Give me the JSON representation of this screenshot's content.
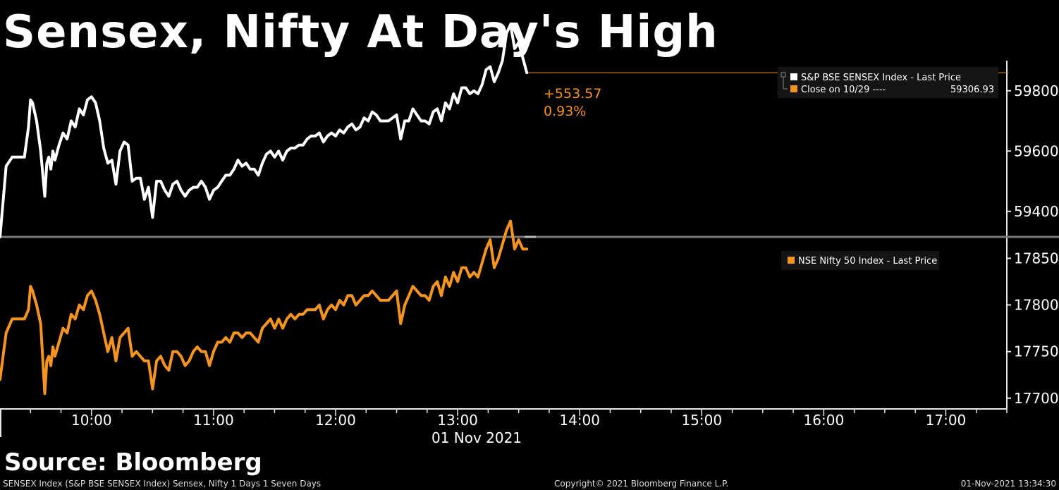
{
  "title": "Sensex, Nifty At Day's High",
  "source": "Source: Bloomberg",
  "footer": {
    "left": "SENSEX Index (S&P BSE SENSEX Index) Sensex, Nifty 1 Days 1 Seven Days",
    "center": "Copyright© 2021 Bloomberg Finance L.P.",
    "right": "01-Nov-2021 13:34:30"
  },
  "colors": {
    "sensex": "#ffffff",
    "nifty": "#f5941e",
    "background": "#000000",
    "panel": "#141414"
  },
  "chart_data": [
    {
      "type": "line",
      "panel": "top",
      "series": [
        {
          "name": "S&P BSE SENSEX Index - Last Price",
          "x": [
            "09:15",
            "09:18",
            "09:21",
            "09:24",
            "09:27",
            "09:29",
            "09:30",
            "09:31",
            "09:33",
            "09:35",
            "09:37",
            "09:38",
            "09:39",
            "09:40",
            "09:41",
            "09:42",
            "09:44",
            "09:46",
            "09:48",
            "09:50",
            "09:52",
            "09:54",
            "09:56",
            "09:58",
            "10:00",
            "10:02",
            "10:04",
            "10:06",
            "10:08",
            "10:10",
            "10:12",
            "10:14",
            "10:16",
            "10:18",
            "10:20",
            "10:22",
            "10:24",
            "10:26",
            "10:28",
            "10:30",
            "10:32",
            "10:34",
            "10:36",
            "10:38",
            "10:40",
            "10:42",
            "10:44",
            "10:46",
            "10:48",
            "10:50",
            "10:52",
            "10:54",
            "10:56",
            "10:58",
            "11:00",
            "11:02",
            "11:04",
            "11:06",
            "11:08",
            "11:10",
            "11:12",
            "11:14",
            "11:16",
            "11:18",
            "11:20",
            "11:22",
            "11:24",
            "11:26",
            "11:28",
            "11:30",
            "11:32",
            "11:34",
            "11:36",
            "11:38",
            "11:40",
            "11:42",
            "11:44",
            "11:46",
            "11:48",
            "11:50",
            "11:52",
            "11:54",
            "11:56",
            "11:58",
            "12:00",
            "12:02",
            "12:04",
            "12:06",
            "12:08",
            "12:10",
            "12:12",
            "12:14",
            "12:16",
            "12:18",
            "12:20",
            "12:22",
            "12:24",
            "12:26",
            "12:28",
            "12:30",
            "12:32",
            "12:34",
            "12:36",
            "12:38",
            "12:40",
            "12:42",
            "12:44",
            "12:46",
            "12:48",
            "12:50",
            "12:52",
            "12:54",
            "12:56",
            "12:58",
            "13:00",
            "13:02",
            "13:04",
            "13:06",
            "13:08",
            "13:10",
            "13:12",
            "13:14",
            "13:16",
            "13:18",
            "13:20",
            "13:22",
            "13:24",
            "13:26",
            "13:28",
            "13:30",
            "13:32",
            "13:34"
          ],
          "values": [
            59315,
            59550,
            59580,
            59580,
            59580,
            59680,
            59770,
            59760,
            59700,
            59600,
            59450,
            59560,
            59580,
            59540,
            59600,
            59570,
            59620,
            59660,
            59640,
            59700,
            59680,
            59740,
            59720,
            59770,
            59780,
            59760,
            59700,
            59610,
            59560,
            59570,
            59490,
            59600,
            59630,
            59620,
            59500,
            59510,
            59510,
            59440,
            59480,
            59380,
            59500,
            59500,
            59470,
            59450,
            59490,
            59500,
            59470,
            59450,
            59470,
            59480,
            59480,
            59500,
            59480,
            59440,
            59470,
            59480,
            59500,
            59520,
            59520,
            59540,
            59570,
            59550,
            59560,
            59540,
            59540,
            59520,
            59560,
            59590,
            59600,
            59580,
            59600,
            59570,
            59600,
            59610,
            59610,
            59620,
            59620,
            59640,
            59650,
            59650,
            59660,
            59630,
            59650,
            59660,
            59650,
            59670,
            59660,
            59680,
            59690,
            59670,
            59680,
            59710,
            59700,
            59730,
            59720,
            59700,
            59700,
            59700,
            59710,
            59720,
            59640,
            59700,
            59700,
            59740,
            59720,
            59700,
            59700,
            59690,
            59730,
            59740,
            59700,
            59760,
            59740,
            59790,
            59760,
            59810,
            59810,
            59790,
            59800,
            59790,
            59820,
            59870,
            59880,
            59830,
            59860,
            59900,
            59990,
            60020,
            59940,
            59960,
            59910,
            59860
          ]
        },
        {
          "name": "Close on 10/29",
          "value": 59306.93
        }
      ],
      "annotation": {
        "change": "+553.57",
        "percent": "0.93%"
      },
      "yticks": [
        59400,
        59600,
        59800
      ],
      "ylim": [
        59320,
        59900
      ]
    },
    {
      "type": "line",
      "panel": "bottom",
      "series": [
        {
          "name": "NSE Nifty 50 Index - Last Price",
          "x": [
            "09:15",
            "09:18",
            "09:21",
            "09:24",
            "09:27",
            "09:29",
            "09:30",
            "09:31",
            "09:33",
            "09:35",
            "09:37",
            "09:38",
            "09:39",
            "09:40",
            "09:41",
            "09:42",
            "09:44",
            "09:46",
            "09:48",
            "09:50",
            "09:52",
            "09:54",
            "09:56",
            "09:58",
            "10:00",
            "10:02",
            "10:04",
            "10:06",
            "10:08",
            "10:10",
            "10:12",
            "10:14",
            "10:16",
            "10:18",
            "10:20",
            "10:22",
            "10:24",
            "10:26",
            "10:28",
            "10:30",
            "10:32",
            "10:34",
            "10:36",
            "10:38",
            "10:40",
            "10:42",
            "10:44",
            "10:46",
            "10:48",
            "10:50",
            "10:52",
            "10:54",
            "10:56",
            "10:58",
            "11:00",
            "11:02",
            "11:04",
            "11:06",
            "11:08",
            "11:10",
            "11:12",
            "11:14",
            "11:16",
            "11:18",
            "11:20",
            "11:22",
            "11:24",
            "11:26",
            "11:28",
            "11:30",
            "11:32",
            "11:34",
            "11:36",
            "11:38",
            "11:40",
            "11:42",
            "11:44",
            "11:46",
            "11:48",
            "11:50",
            "11:52",
            "11:54",
            "11:56",
            "11:58",
            "12:00",
            "12:02",
            "12:04",
            "12:06",
            "12:08",
            "12:10",
            "12:12",
            "12:14",
            "12:16",
            "12:18",
            "12:20",
            "12:22",
            "12:24",
            "12:26",
            "12:28",
            "12:30",
            "12:32",
            "12:34",
            "12:36",
            "12:38",
            "12:40",
            "12:42",
            "12:44",
            "12:46",
            "12:48",
            "12:50",
            "12:52",
            "12:54",
            "12:56",
            "12:58",
            "13:00",
            "13:02",
            "13:04",
            "13:06",
            "13:08",
            "13:10",
            "13:12",
            "13:14",
            "13:16",
            "13:18",
            "13:20",
            "13:22",
            "13:24",
            "13:26",
            "13:28",
            "13:30",
            "13:32",
            "13:34"
          ],
          "values": [
            17720,
            17770,
            17785,
            17785,
            17785,
            17795,
            17820,
            17815,
            17800,
            17780,
            17705,
            17740,
            17745,
            17735,
            17755,
            17745,
            17760,
            17775,
            17770,
            17790,
            17785,
            17800,
            17795,
            17810,
            17815,
            17805,
            17790,
            17770,
            17750,
            17765,
            17740,
            17765,
            17770,
            17775,
            17745,
            17750,
            17745,
            17740,
            17740,
            17710,
            17740,
            17745,
            17735,
            17730,
            17750,
            17750,
            17745,
            17735,
            17740,
            17750,
            17755,
            17750,
            17750,
            17735,
            17750,
            17760,
            17760,
            17765,
            17760,
            17770,
            17770,
            17765,
            17770,
            17770,
            17765,
            17760,
            17775,
            17780,
            17785,
            17775,
            17785,
            17775,
            17785,
            17790,
            17785,
            17790,
            17790,
            17795,
            17795,
            17795,
            17800,
            17785,
            17795,
            17800,
            17795,
            17805,
            17800,
            17810,
            17810,
            17800,
            17805,
            17810,
            17810,
            17815,
            17810,
            17805,
            17805,
            17805,
            17810,
            17815,
            17780,
            17800,
            17810,
            17820,
            17815,
            17810,
            17810,
            17805,
            17820,
            17825,
            17810,
            17830,
            17820,
            17835,
            17825,
            17840,
            17840,
            17830,
            17835,
            17830,
            17845,
            17860,
            17870,
            17840,
            17850,
            17865,
            17880,
            17890,
            17860,
            17870,
            17860,
            17860
          ]
        }
      ],
      "yticks": [
        17700,
        17750,
        17800,
        17850
      ],
      "ylim": [
        17690,
        17870
      ]
    }
  ],
  "x_axis": {
    "ticks": [
      "10:00",
      "11:00",
      "12:00",
      "13:00",
      "14:00",
      "15:00",
      "16:00",
      "17:00"
    ],
    "date_label": "01 Nov 2021",
    "range": [
      "09:15",
      "17:30"
    ]
  }
}
